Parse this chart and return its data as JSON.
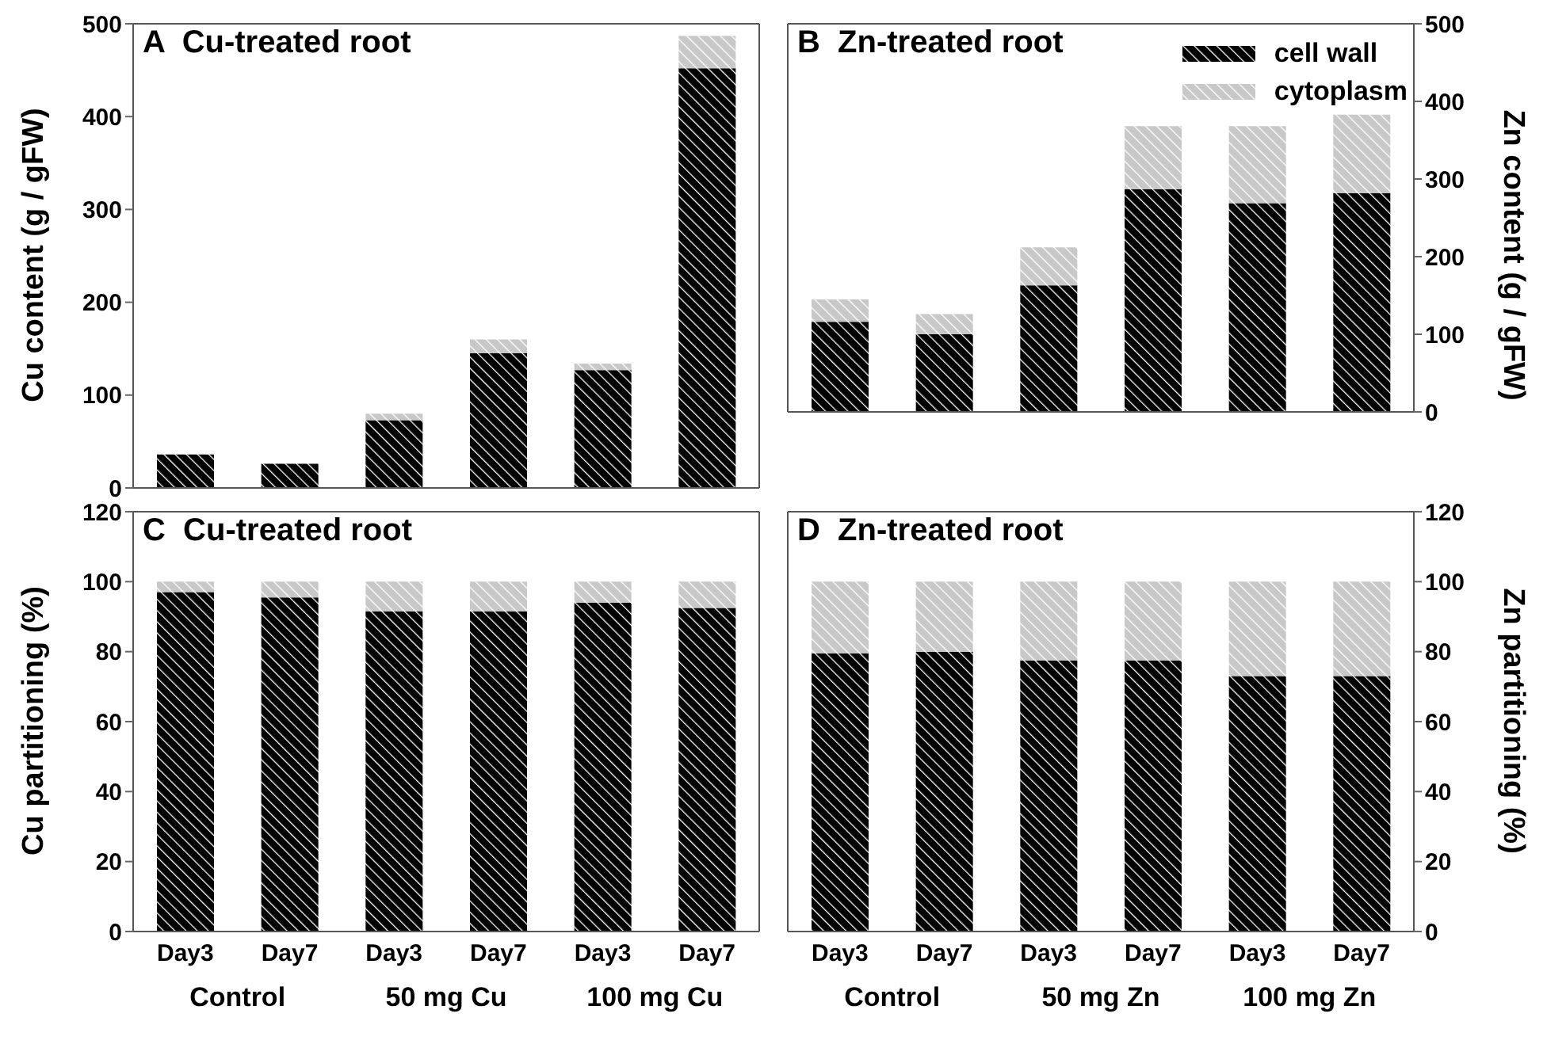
{
  "chart_data": [
    {
      "type": "bar",
      "title": "A  Cu-treated root",
      "ylabel": "Cu content (g / gFW)",
      "categories": [
        null,
        null,
        null,
        null,
        null,
        null
      ],
      "stacked": true,
      "ylim": [
        0,
        500
      ],
      "yticks": [
        0,
        100,
        200,
        300,
        400,
        500
      ],
      "legend": false,
      "series": [
        {
          "color": "#000000",
          "values": [
            36,
            26,
            73,
            145,
            127,
            452
          ]
        },
        {
          "color": "#c8c8c8",
          "values": [
            0,
            0,
            7,
            15,
            7,
            35
          ]
        }
      ]
    },
    {
      "type": "bar",
      "title": "B  Zn-treated root",
      "ylabel": "Zn content (g / gFW)",
      "categories": [
        null,
        null,
        null,
        null,
        null,
        null
      ],
      "stacked": true,
      "ylim": [
        0,
        500
      ],
      "yticks": [
        0,
        100,
        200,
        300,
        400,
        500
      ],
      "legend": "top right",
      "series": [
        {
          "name": "cell wall",
          "color": "#000000",
          "values": [
            116,
            100,
            163,
            287,
            269,
            282
          ]
        },
        {
          "name": "cytoplasm",
          "color": "#c8c8c8",
          "values": [
            29,
            26,
            49,
            81,
            99,
            101
          ]
        }
      ]
    },
    {
      "type": "bar",
      "title": "C  Cu-treated root",
      "ylabel": "Cu partitioning (%)",
      "categories": [
        "Day3",
        "Day7",
        "Day3",
        "Day7",
        "Day3",
        "Day7"
      ],
      "stacked": true,
      "ylim": [
        0,
        120
      ],
      "yticks": [
        0,
        20,
        40,
        60,
        80,
        100,
        120
      ],
      "legend": false,
      "annotations": [
        "Control",
        "50 mg Cu",
        "100 mg Cu"
      ],
      "series": [
        {
          "color": "#000000",
          "values": [
            97,
            95.5,
            91.5,
            91.5,
            94,
            92.5
          ]
        },
        {
          "color": "#c8c8c8",
          "values": [
            3,
            4.5,
            8.5,
            8.5,
            6,
            7.5
          ]
        }
      ]
    },
    {
      "type": "bar",
      "title": "D  Zn-treated root",
      "ylabel": "Zn partitioning (%)",
      "categories": [
        "Day3",
        "Day7",
        "Day3",
        "Day7",
        "Day3",
        "Day7"
      ],
      "stacked": true,
      "ylim": [
        0,
        120
      ],
      "yticks": [
        0,
        20,
        40,
        60,
        80,
        100,
        120
      ],
      "legend": false,
      "annotations": [
        "Control",
        "50 mg Zn",
        "100 mg Zn"
      ],
      "series": [
        {
          "color": "#000000",
          "values": [
            79.5,
            80,
            77.5,
            77.5,
            73,
            73
          ]
        },
        {
          "color": "#c8c8c8",
          "values": [
            20.5,
            20,
            22.5,
            22.5,
            27,
            27
          ]
        }
      ]
    }
  ]
}
